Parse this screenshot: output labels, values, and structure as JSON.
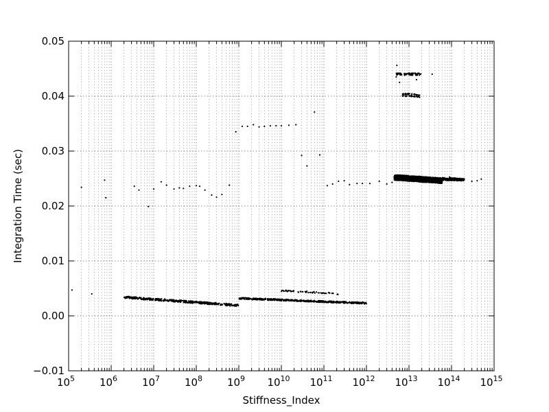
{
  "chart_data": {
    "type": "scatter",
    "title": "",
    "xlabel": "Stiffness_Index",
    "ylabel": "Integration Time (sec)",
    "x_scale": "log",
    "xlim": [
      100000,
      1000000000000000
    ],
    "ylim": [
      -0.01,
      0.05
    ],
    "x_ticks": [
      {
        "value": 100000,
        "base": "10",
        "exp": "5"
      },
      {
        "value": 1000000,
        "base": "10",
        "exp": "6"
      },
      {
        "value": 10000000,
        "base": "10",
        "exp": "7"
      },
      {
        "value": 100000000,
        "base": "10",
        "exp": "8"
      },
      {
        "value": 1000000000,
        "base": "10",
        "exp": "9"
      },
      {
        "value": 10000000000,
        "base": "10",
        "exp": "10"
      },
      {
        "value": 100000000000,
        "base": "10",
        "exp": "11"
      },
      {
        "value": 1000000000000,
        "base": "10",
        "exp": "12"
      },
      {
        "value": 10000000000000,
        "base": "10",
        "exp": "13"
      },
      {
        "value": 100000000000000,
        "base": "10",
        "exp": "14"
      },
      {
        "value": 1000000000000000,
        "base": "10",
        "exp": "15"
      }
    ],
    "y_ticks": [
      {
        "value": -0.01,
        "label": "−0.01"
      },
      {
        "value": 0.0,
        "label": "0.00"
      },
      {
        "value": 0.01,
        "label": "0.01"
      },
      {
        "value": 0.02,
        "label": "0.02"
      },
      {
        "value": 0.03,
        "label": "0.03"
      },
      {
        "value": 0.04,
        "label": "0.04"
      },
      {
        "value": 0.05,
        "label": "0.05"
      }
    ],
    "grid": true,
    "marker_color": "#000000",
    "series": [
      {
        "points": [
          [
            120000.0,
            0.0047
          ],
          [
            200000.0,
            0.0234
          ],
          [
            350000.0,
            0.004
          ],
          [
            700000.0,
            0.0247
          ],
          [
            750000.0,
            0.0215
          ],
          [
            2500000.0,
            0.0035
          ],
          [
            3500000.0,
            0.0236
          ],
          [
            4500000.0,
            0.0229
          ],
          [
            7500000.0,
            0.0199
          ],
          [
            10000000.0,
            0.0231
          ],
          [
            15000000.0,
            0.0244
          ],
          [
            20000000.0,
            0.0238
          ],
          [
            30000000.0,
            0.0231
          ],
          [
            40000000.0,
            0.0233
          ],
          [
            50000000.0,
            0.0232
          ],
          [
            70000000.0,
            0.0236
          ],
          [
            100000000.0,
            0.0237
          ],
          [
            120000000.0,
            0.0236
          ],
          [
            160000000.0,
            0.0229
          ],
          [
            230000000.0,
            0.022
          ],
          [
            300000000.0,
            0.0216
          ],
          [
            400000000.0,
            0.0221
          ],
          [
            600000000.0,
            0.0238
          ],
          [
            850000000.0,
            0.0335
          ],
          [
            1200000000.0,
            0.0345
          ],
          [
            1600000000.0,
            0.0345
          ],
          [
            2200000000.0,
            0.0348
          ],
          [
            3000000000.0,
            0.0344
          ],
          [
            4000000000.0,
            0.0345
          ],
          [
            5500000000.0,
            0.0346
          ],
          [
            7500000000.0,
            0.0346
          ],
          [
            10000000000.0,
            0.0346
          ],
          [
            15000000000.0,
            0.0347
          ],
          [
            22000000000.0,
            0.0348
          ],
          [
            30000000000.0,
            0.0292
          ],
          [
            40000000000.0,
            0.0273
          ],
          [
            60000000000.0,
            0.0371
          ],
          [
            80000000000.0,
            0.0293
          ],
          [
            120000000000.0,
            0.0237
          ],
          [
            160000000000.0,
            0.024
          ],
          [
            220000000000.0,
            0.0245
          ],
          [
            300000000000.0,
            0.0246
          ],
          [
            400000000000.0,
            0.0239
          ],
          [
            600000000000.0,
            0.0241
          ],
          [
            800000000000.0,
            0.0241
          ],
          [
            1200000000000.0,
            0.0241
          ],
          [
            2000000000000.0,
            0.0245
          ],
          [
            3000000000000.0,
            0.024
          ],
          [
            4000000000000.0,
            0.0243
          ],
          [
            60000000000000.0,
            0.025
          ],
          [
            90000000000000.0,
            0.0253
          ],
          [
            120000000000000.0,
            0.0251
          ],
          [
            200000000000000.0,
            0.0249
          ],
          [
            300000000000000.0,
            0.0245
          ],
          [
            400000000000000.0,
            0.0246
          ],
          [
            500000000000000.0,
            0.0249
          ],
          [
            35000000000000.0,
            0.044
          ],
          [
            5000000000000.0,
            0.0435
          ],
          [
            5200000000000.0,
            0.0456
          ],
          [
            5500000000000.0,
            0.044
          ],
          [
            6000000000000.0,
            0.0425
          ],
          [
            15000000000000.0,
            0.043
          ]
        ]
      }
    ],
    "dense_regions": [
      {
        "x_from": 2000000.0,
        "x_to": 1000000000.0,
        "y_start": 0.0034,
        "y_end": 0.0019,
        "y_spread": 0.0004,
        "count": 420
      },
      {
        "x_from": 1000000000.0,
        "x_to": 1000000000000.0,
        "y_start": 0.0032,
        "y_end": 0.0023,
        "y_spread": 0.0003,
        "count": 520
      },
      {
        "x_from": 10000000000.0,
        "x_to": 220000000000.0,
        "y_start": 0.0046,
        "y_end": 0.004,
        "y_spread": 0.0003,
        "count": 60
      },
      {
        "x_from": 4500000000000.0,
        "x_to": 60000000000000.0,
        "y_start": 0.0252,
        "y_end": 0.0246,
        "y_spread": 0.001,
        "count": 1400
      },
      {
        "x_from": 60000000000000.0,
        "x_to": 200000000000000.0,
        "y_start": 0.0249,
        "y_end": 0.0248,
        "y_spread": 0.0005,
        "count": 160
      },
      {
        "x_from": 5000000000000.0,
        "x_to": 20000000000000.0,
        "y_start": 0.044,
        "y_end": 0.044,
        "y_spread": 0.0004,
        "count": 70
      },
      {
        "x_from": 7000000000000.0,
        "x_to": 18000000000000.0,
        "y_start": 0.0403,
        "y_end": 0.04,
        "y_spread": 0.0006,
        "count": 50
      }
    ]
  }
}
